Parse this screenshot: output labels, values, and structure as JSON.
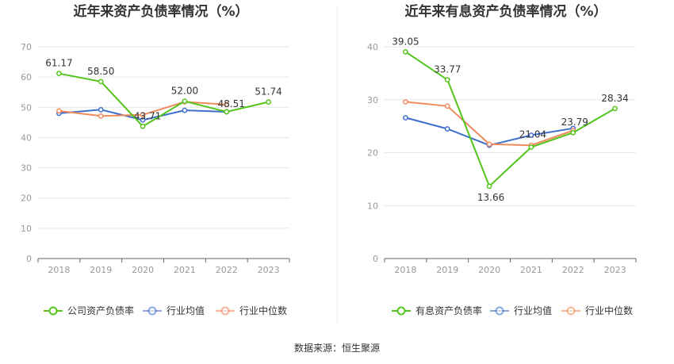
{
  "source": "数据来源：恒生聚源",
  "chart_data": [
    {
      "type": "line",
      "title": "近年来资产负债率情况（%）",
      "x": [
        "2018",
        "2019",
        "2020",
        "2021",
        "2022",
        "2023"
      ],
      "ylim": [
        0,
        70
      ],
      "yticks": [
        0,
        10,
        20,
        30,
        40,
        50,
        60,
        70
      ],
      "grid": true,
      "legend_position": "bottom",
      "series": [
        {
          "name": "公司资产负债率",
          "color": "#52c41a",
          "values": [
            61.17,
            58.5,
            43.71,
            52.0,
            48.51,
            51.74
          ],
          "labels": [
            "61.17",
            "58.50",
            "43.71",
            "52.00",
            "48.51",
            "51.74"
          ]
        },
        {
          "name": "行业均值",
          "color": "#3e6fcd",
          "values": [
            48.0,
            49.2,
            45.8,
            49.0,
            48.5,
            null
          ]
        },
        {
          "name": "行业中位数",
          "color": "#f08a5d",
          "values": [
            48.8,
            47.1,
            47.5,
            51.8,
            50.9,
            null
          ]
        }
      ]
    },
    {
      "type": "line",
      "title": "近年来有息资产负债率情况（%）",
      "x": [
        "2018",
        "2019",
        "2020",
        "2021",
        "2022",
        "2023"
      ],
      "ylim": [
        0,
        40
      ],
      "yticks": [
        0,
        10,
        20,
        30,
        40
      ],
      "grid": true,
      "legend_position": "bottom",
      "series": [
        {
          "name": "有息资产负债率",
          "color": "#52c41a",
          "values": [
            39.05,
            33.77,
            13.66,
            21.04,
            23.79,
            28.34
          ],
          "labels": [
            "39.05",
            "33.77",
            "13.66",
            "21.04",
            "23.79",
            "28.34"
          ]
        },
        {
          "name": "行业均值",
          "color": "#3e6fcd",
          "values": [
            26.6,
            24.5,
            21.4,
            23.3,
            24.6,
            null
          ]
        },
        {
          "name": "行业中位数",
          "color": "#f08a5d",
          "values": [
            29.6,
            28.8,
            21.6,
            21.4,
            24.2,
            null
          ]
        }
      ]
    }
  ]
}
